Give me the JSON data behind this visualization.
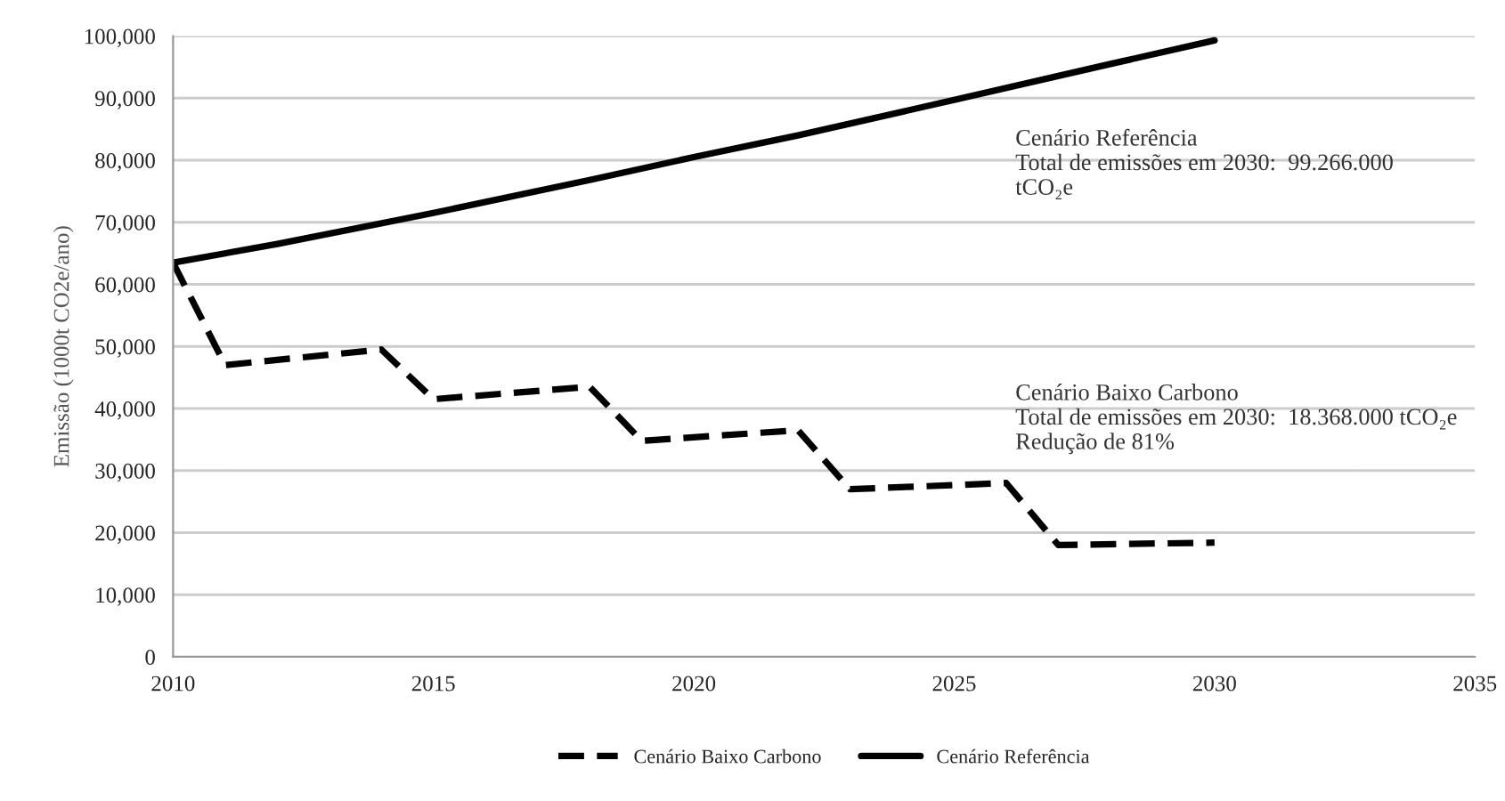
{
  "chart_data": {
    "type": "line",
    "ylabel": "Emissão (1000t CO2e/ano)",
    "xlim": [
      2010,
      2035
    ],
    "xticks": [
      2010,
      2015,
      2020,
      2025,
      2030,
      2035
    ],
    "ylim": [
      0,
      100000
    ],
    "yticks": [
      {
        "value": 0,
        "label": "0"
      },
      {
        "value": 10000,
        "label": "10,000"
      },
      {
        "value": 20000,
        "label": "20,000"
      },
      {
        "value": 30000,
        "label": "30,000"
      },
      {
        "value": 40000,
        "label": "40,000"
      },
      {
        "value": 50000,
        "label": "50,000"
      },
      {
        "value": 60000,
        "label": "60,000"
      },
      {
        "value": 70000,
        "label": "70,000"
      },
      {
        "value": 80000,
        "label": "80,000"
      },
      {
        "value": 90000,
        "label": "90,000"
      },
      {
        "value": 100000,
        "label": "100,000"
      }
    ],
    "grid": "y",
    "legend": "bottom",
    "marker": "none",
    "series": [
      {
        "name": "Cenário Baixo Carbono",
        "color": "#000000",
        "line_style": "dashed",
        "x": [
          2010,
          2011,
          2014,
          2015,
          2018,
          2019,
          2022,
          2023,
          2026,
          2027,
          2030
        ],
        "values": [
          63500,
          47000,
          49500,
          41500,
          43500,
          34800,
          36500,
          27000,
          28000,
          18000,
          18400
        ]
      },
      {
        "name": "Cenário Referência",
        "color": "#000000",
        "line_style": "solid",
        "x": [
          2010,
          2012,
          2015,
          2018,
          2020,
          2022,
          2025,
          2028,
          2030
        ],
        "values": [
          63500,
          66500,
          71500,
          76800,
          80500,
          84000,
          89700,
          95500,
          99300
        ]
      }
    ],
    "annotations": [
      "Cenário Referência\nTotal de emissões em 2030:  99.266.000\ntCO₂e",
      "Cenário Baixo Carbono\nTotal de emissões em 2030:  18.368.000 tCO₂e\nRedução de 81%"
    ]
  }
}
